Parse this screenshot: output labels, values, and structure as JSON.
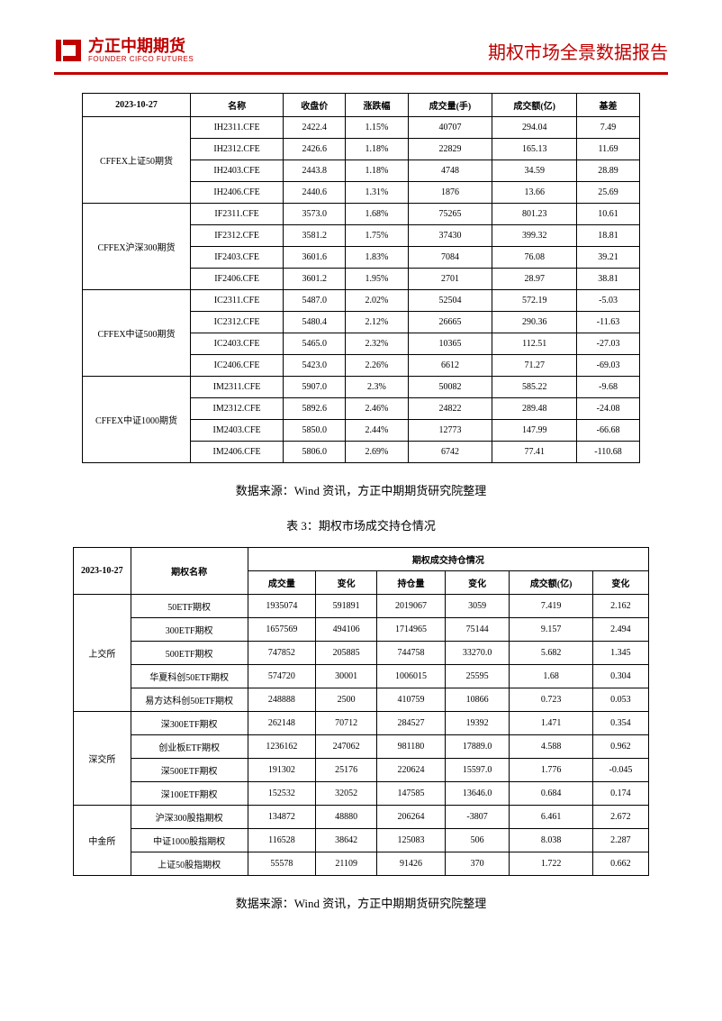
{
  "header": {
    "logo_cn": "方正中期期货",
    "logo_en": "FOUNDER CIFCO FUTURES",
    "report_title": "期权市场全景数据报告"
  },
  "table1": {
    "date": "2023-10-27",
    "columns": [
      "名称",
      "收盘价",
      "涨跌幅",
      "成交量(手)",
      "成交额(亿)",
      "基差"
    ],
    "groups": [
      {
        "label": "CFFEX上证50期货",
        "rows": [
          [
            "IH2311.CFE",
            "2422.4",
            "1.15%",
            "40707",
            "294.04",
            "7.49"
          ],
          [
            "IH2312.CFE",
            "2426.6",
            "1.18%",
            "22829",
            "165.13",
            "11.69"
          ],
          [
            "IH2403.CFE",
            "2443.8",
            "1.18%",
            "4748",
            "34.59",
            "28.89"
          ],
          [
            "IH2406.CFE",
            "2440.6",
            "1.31%",
            "1876",
            "13.66",
            "25.69"
          ]
        ]
      },
      {
        "label": "CFFEX沪深300期货",
        "rows": [
          [
            "IF2311.CFE",
            "3573.0",
            "1.68%",
            "75265",
            "801.23",
            "10.61"
          ],
          [
            "IF2312.CFE",
            "3581.2",
            "1.75%",
            "37430",
            "399.32",
            "18.81"
          ],
          [
            "IF2403.CFE",
            "3601.6",
            "1.83%",
            "7084",
            "76.08",
            "39.21"
          ],
          [
            "IF2406.CFE",
            "3601.2",
            "1.95%",
            "2701",
            "28.97",
            "38.81"
          ]
        ]
      },
      {
        "label": "CFFEX中证500期货",
        "rows": [
          [
            "IC2311.CFE",
            "5487.0",
            "2.02%",
            "52504",
            "572.19",
            "-5.03"
          ],
          [
            "IC2312.CFE",
            "5480.4",
            "2.12%",
            "26665",
            "290.36",
            "-11.63"
          ],
          [
            "IC2403.CFE",
            "5465.0",
            "2.32%",
            "10365",
            "112.51",
            "-27.03"
          ],
          [
            "IC2406.CFE",
            "5423.0",
            "2.26%",
            "6612",
            "71.27",
            "-69.03"
          ]
        ]
      },
      {
        "label": "CFFEX中证1000期货",
        "rows": [
          [
            "IM2311.CFE",
            "5907.0",
            "2.3%",
            "50082",
            "585.22",
            "-9.68"
          ],
          [
            "IM2312.CFE",
            "5892.6",
            "2.46%",
            "24822",
            "289.48",
            "-24.08"
          ],
          [
            "IM2403.CFE",
            "5850.0",
            "2.44%",
            "12773",
            "147.99",
            "-66.68"
          ],
          [
            "IM2406.CFE",
            "5806.0",
            "2.69%",
            "6742",
            "77.41",
            "-110.68"
          ]
        ]
      }
    ]
  },
  "source_text": "数据来源：Wind 资讯，方正中期期货研究院整理",
  "table2_title": "表 3：期权市场成交持仓情况",
  "table2": {
    "date": "2023-10-27",
    "h1": "期权名称",
    "h2": "期权成交持仓情况",
    "sub_columns": [
      "成交量",
      "变化",
      "持仓量",
      "变化",
      "成交额(亿)",
      "变化"
    ],
    "groups": [
      {
        "label": "上交所",
        "rows": [
          [
            "50ETF期权",
            "1935074",
            "591891",
            "2019067",
            "3059",
            "7.419",
            "2.162"
          ],
          [
            "300ETF期权",
            "1657569",
            "494106",
            "1714965",
            "75144",
            "9.157",
            "2.494"
          ],
          [
            "500ETF期权",
            "747852",
            "205885",
            "744758",
            "33270.0",
            "5.682",
            "1.345"
          ],
          [
            "华夏科创50ETF期权",
            "574720",
            "30001",
            "1006015",
            "25595",
            "1.68",
            "0.304"
          ],
          [
            "易方达科创50ETF期权",
            "248888",
            "2500",
            "410759",
            "10866",
            "0.723",
            "0.053"
          ]
        ]
      },
      {
        "label": "深交所",
        "rows": [
          [
            "深300ETF期权",
            "262148",
            "70712",
            "284527",
            "19392",
            "1.471",
            "0.354"
          ],
          [
            "创业板ETF期权",
            "1236162",
            "247062",
            "981180",
            "17889.0",
            "4.588",
            "0.962"
          ],
          [
            "深500ETF期权",
            "191302",
            "25176",
            "220624",
            "15597.0",
            "1.776",
            "-0.045"
          ],
          [
            "深100ETF期权",
            "152532",
            "32052",
            "147585",
            "13646.0",
            "0.684",
            "0.174"
          ]
        ]
      },
      {
        "label": "中金所",
        "rows": [
          [
            "沪深300股指期权",
            "134872",
            "48880",
            "206264",
            "-3807",
            "6.461",
            "2.672"
          ],
          [
            "中证1000股指期权",
            "116528",
            "38642",
            "125083",
            "506",
            "8.038",
            "2.287"
          ],
          [
            "上证50股指期权",
            "55578",
            "21109",
            "91426",
            "370",
            "1.722",
            "0.662"
          ]
        ]
      }
    ]
  }
}
